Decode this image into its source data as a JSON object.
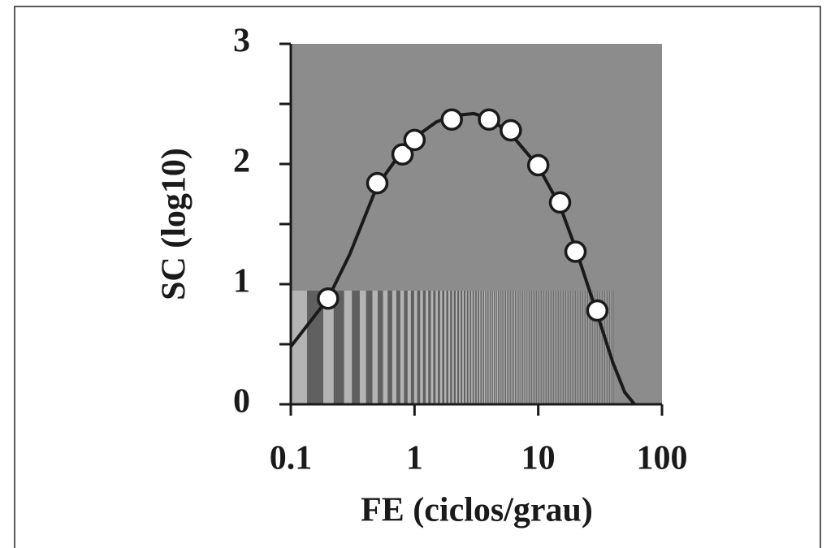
{
  "chart_data": {
    "type": "scatter",
    "x_label": "FE (ciclos/grau)",
    "y_label": "SC (log10)",
    "xscale": "log",
    "xlim": [
      0.1,
      100
    ],
    "ylim": [
      0,
      3
    ],
    "xticks": [
      0.1,
      1,
      10,
      100
    ],
    "yticks": [
      0,
      1,
      2,
      3
    ],
    "yminorticks": [
      0.5,
      1.5,
      2.5
    ],
    "background": "#8c8c8c",
    "series": [
      {
        "kind": "line",
        "color": "#1a1a1a",
        "x": [
          0.1,
          0.2,
          0.3,
          0.5,
          0.7,
          1,
          1.5,
          2,
          3,
          4,
          6,
          10,
          15,
          20,
          30,
          40,
          50,
          60
        ],
        "values": [
          0.48,
          0.88,
          1.25,
          1.82,
          2.03,
          2.22,
          2.35,
          2.4,
          2.42,
          2.38,
          2.25,
          1.98,
          1.65,
          1.3,
          0.75,
          0.35,
          0.1,
          0
        ]
      },
      {
        "kind": "points",
        "color": "#ffffff",
        "x": [
          0.2,
          0.5,
          0.8,
          1,
          2,
          4,
          6,
          10,
          15,
          20,
          30
        ],
        "values": [
          0.88,
          1.84,
          2.08,
          2.2,
          2.37,
          2.37,
          2.28,
          1.99,
          1.68,
          1.27,
          0.78
        ]
      }
    ]
  }
}
